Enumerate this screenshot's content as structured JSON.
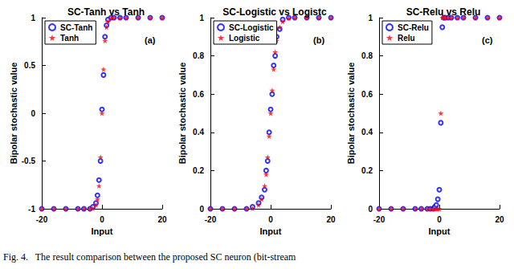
{
  "caption": "Fig. 4.   The result comparison between the proposed SC neuron (bit-stream",
  "chart_data": [
    {
      "type": "scatter",
      "title": "SC-Tanh vs Tanh",
      "annotation": "(a)",
      "x_label": "Input",
      "y_label": "Bipolar stochastic value",
      "x": [
        -20,
        -16,
        -12,
        -8,
        -6,
        -4,
        -3,
        -2,
        -1.5,
        -1,
        -0.5,
        0,
        0.5,
        1,
        1.5,
        2,
        3,
        4,
        6,
        8,
        12,
        16,
        20
      ],
      "series": [
        {
          "name": "SC-Tanh",
          "color": "#0000ff",
          "marker": "circle",
          "values": [
            -1,
            -1,
            -1,
            -1,
            -1,
            -1,
            -0.98,
            -0.94,
            -0.86,
            -0.7,
            -0.5,
            0.04,
            0.4,
            0.8,
            0.92,
            0.98,
            1,
            1,
            1,
            1,
            1,
            1,
            1
          ]
        },
        {
          "name": "Tanh",
          "color": "#ff0000",
          "marker": "star",
          "values": [
            -1,
            -1,
            -1,
            -1,
            -1,
            -0.999,
            -0.995,
            -0.96,
            -0.9,
            -0.76,
            -0.46,
            0,
            0.46,
            0.76,
            0.9,
            0.96,
            0.995,
            0.999,
            1,
            1,
            1,
            1,
            1
          ]
        }
      ],
      "xlim": [
        -20,
        20
      ],
      "xticks": [
        -20,
        0,
        20
      ],
      "ylim": [
        -1,
        1
      ],
      "yticks": [
        -1,
        -0.5,
        0,
        0.5,
        1
      ],
      "grid": false,
      "legend": "upper left"
    },
    {
      "type": "scatter",
      "title": "SC-Logistic vs Logistc",
      "annotation": "(b)",
      "x_label": "Input",
      "y_label": "Bipolar stochastic value",
      "x": [
        -20,
        -16,
        -12,
        -8,
        -6,
        -4,
        -3,
        -2,
        -1.5,
        -1,
        -0.5,
        0,
        0.5,
        1,
        1.5,
        2,
        3,
        4,
        6,
        8,
        12,
        16,
        20
      ],
      "series": [
        {
          "name": "SC-Logistic",
          "color": "#0000ff",
          "marker": "circle",
          "values": [
            0,
            0,
            0,
            0,
            0.01,
            0.03,
            0.06,
            0.1,
            0.2,
            0.25,
            0.4,
            0.52,
            0.6,
            0.75,
            0.8,
            0.9,
            0.94,
            0.99,
            1,
            1,
            1,
            1,
            1
          ]
        },
        {
          "name": "Logistic",
          "color": "#ff0000",
          "marker": "star",
          "values": [
            0,
            0,
            0,
            0,
            0.002,
            0.02,
            0.05,
            0.12,
            0.18,
            0.27,
            0.38,
            0.5,
            0.62,
            0.73,
            0.82,
            0.88,
            0.95,
            0.98,
            0.998,
            1,
            1,
            1,
            1
          ]
        }
      ],
      "xlim": [
        -20,
        20
      ],
      "xticks": [
        -20,
        0,
        20
      ],
      "ylim": [
        0,
        1
      ],
      "yticks": [
        0,
        0.2,
        0.4,
        0.6,
        0.8,
        1
      ],
      "grid": false,
      "legend": "upper left"
    },
    {
      "type": "scatter",
      "title": "SC-Relu vs Relu",
      "annotation": "(c)",
      "x_label": "Input",
      "y_label": "Bipolar stochastic value",
      "x": [
        -20,
        -16,
        -12,
        -8,
        -6,
        -4,
        -3,
        -2,
        -1.5,
        -1,
        -0.5,
        0,
        0.5,
        1,
        1.5,
        2,
        3,
        4,
        6,
        8,
        12,
        16,
        20
      ],
      "series": [
        {
          "name": "SC-Relu",
          "color": "#0000ff",
          "marker": "circle",
          "values": [
            0,
            0,
            0,
            0,
            0,
            0,
            0,
            0,
            0.01,
            0.02,
            0.05,
            0.1,
            0.45,
            0.95,
            1,
            1,
            1,
            1,
            1,
            1,
            1,
            1,
            1
          ]
        },
        {
          "name": "Relu",
          "color": "#ff0000",
          "marker": "star",
          "values": [
            0,
            0,
            0,
            0,
            0,
            0,
            0,
            0,
            0,
            0,
            0,
            0,
            0.5,
            1,
            1,
            1,
            1,
            1,
            1,
            1,
            1,
            1,
            1
          ]
        }
      ],
      "xlim": [
        -20,
        20
      ],
      "xticks": [
        -20,
        0,
        20
      ],
      "ylim": [
        0,
        1
      ],
      "yticks": [
        0,
        0.2,
        0.4,
        0.6,
        0.8,
        1
      ],
      "grid": false,
      "legend": "upper left"
    }
  ]
}
